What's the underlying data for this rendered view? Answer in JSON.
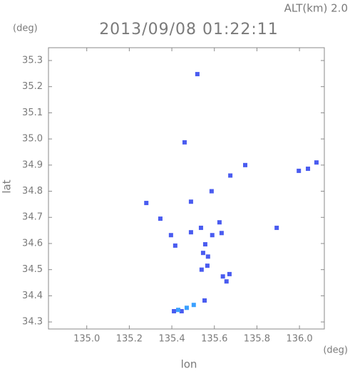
{
  "chart_data": {
    "type": "scatter",
    "altitude_label": "ALT(km) 2.0",
    "title": "2013/09/08 01:22:11",
    "y_unit": "(deg)",
    "x_unit": "(deg)",
    "ylabel": "lat",
    "xlabel": "lon",
    "xlim": [
      134.82,
      136.117
    ],
    "ylim": [
      34.273,
      35.349
    ],
    "xticks": [
      {
        "value": 135,
        "label": "135.0"
      },
      135.2,
      135.4,
      135.6,
      135.8,
      {
        "value": 136,
        "label": "136.0"
      }
    ],
    "yticks": [
      34.3,
      34.4,
      34.5,
      34.6,
      34.7,
      34.8,
      34.9,
      {
        "value": 35,
        "label": "35.0"
      },
      35.1,
      35.2,
      35.3
    ],
    "series": [
      {
        "color": "#4a5cf0",
        "x": [
          135.52,
          135.46,
          135.745,
          135.675,
          136.04,
          135.997,
          136.08,
          135.587,
          135.49,
          135.28,
          135.346,
          135.396,
          135.416,
          135.49,
          135.537,
          135.59,
          135.624,
          135.634,
          135.557,
          135.547,
          135.57,
          135.54,
          135.567,
          135.64,
          135.671,
          135.657,
          135.893,
          135.554,
          135.446,
          135.41
        ],
        "y": [
          35.248,
          34.987,
          34.9,
          34.86,
          34.886,
          34.878,
          34.91,
          34.8,
          34.76,
          34.755,
          34.695,
          34.632,
          34.592,
          34.643,
          34.66,
          34.632,
          34.681,
          34.64,
          34.597,
          34.564,
          34.55,
          34.5,
          34.515,
          34.474,
          34.483,
          34.455,
          34.66,
          34.382,
          34.341,
          34.341
        ]
      },
      {
        "color": "#3aa0ff",
        "x": [
          135.43,
          135.47,
          135.503
        ],
        "y": [
          34.346,
          34.354,
          34.365
        ]
      }
    ]
  }
}
